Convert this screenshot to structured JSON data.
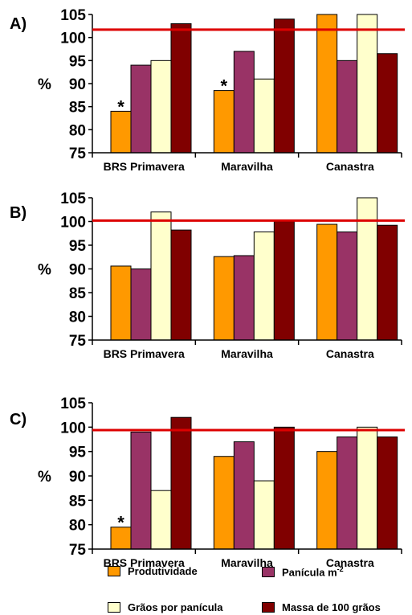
{
  "chart_data": [
    {
      "type": "bar",
      "panel_label": "A)",
      "ylabel": "%",
      "ylim": [
        75,
        105
      ],
      "yticks": [
        75,
        80,
        85,
        90,
        95,
        100,
        105
      ],
      "reference_line": 101.7,
      "categories": [
        "BRS Primavera",
        "Maravilha",
        "Canastra"
      ],
      "series": [
        {
          "key": "s1",
          "values": [
            84,
            88.5,
            105
          ]
        },
        {
          "key": "s2",
          "values": [
            94,
            97,
            95
          ]
        },
        {
          "key": "s3",
          "values": [
            95,
            91,
            105
          ]
        },
        {
          "key": "s4",
          "values": [
            103,
            104,
            96.5
          ]
        }
      ],
      "annotations": [
        {
          "text": "*",
          "category": 0,
          "series": 0
        },
        {
          "text": "*",
          "category": 1,
          "series": 0
        }
      ]
    },
    {
      "type": "bar",
      "panel_label": "B)",
      "ylabel": "%",
      "ylim": [
        75,
        105
      ],
      "yticks": [
        75,
        80,
        85,
        90,
        95,
        100,
        105
      ],
      "reference_line": 100.2,
      "categories": [
        "BRS Primavera",
        "Maravilha",
        "Canastra"
      ],
      "series": [
        {
          "key": "s1",
          "values": [
            90.6,
            92.6,
            99.4
          ]
        },
        {
          "key": "s2",
          "values": [
            90,
            92.8,
            97.8
          ]
        },
        {
          "key": "s3",
          "values": [
            102,
            97.8,
            105
          ]
        },
        {
          "key": "s4",
          "values": [
            98.2,
            100,
            99.2
          ]
        }
      ],
      "annotations": []
    },
    {
      "type": "bar",
      "panel_label": "C)",
      "ylabel": "%",
      "ylim": [
        75,
        105
      ],
      "yticks": [
        75,
        80,
        85,
        90,
        95,
        100,
        105
      ],
      "reference_line": 99.4,
      "categories": [
        "BRS Primavera",
        "Maravilha",
        "Canastra"
      ],
      "series": [
        {
          "key": "s1",
          "values": [
            79.5,
            94,
            95
          ]
        },
        {
          "key": "s2",
          "values": [
            99,
            97,
            98
          ]
        },
        {
          "key": "s3",
          "values": [
            87,
            89,
            100
          ]
        },
        {
          "key": "s4",
          "values": [
            102,
            100,
            98
          ]
        }
      ],
      "annotations": [
        {
          "text": "*",
          "category": 0,
          "series": 0
        }
      ]
    }
  ],
  "legend": {
    "placement": "bottom",
    "items": [
      {
        "key": "s1",
        "label": "Produtividade",
        "color": "#ff9900"
      },
      {
        "key": "s2",
        "label": "Panícula m",
        "sup": "-2",
        "color": "#993366"
      },
      {
        "key": "s3",
        "label": "Grãos por panícula",
        "color": "#ffffcc"
      },
      {
        "key": "s4",
        "label": "Massa de 100 grãos",
        "color": "#800000"
      }
    ]
  },
  "colors": {
    "reference_line": "#dd0000",
    "axis": "#000000",
    "bar_outline": "#000000"
  }
}
